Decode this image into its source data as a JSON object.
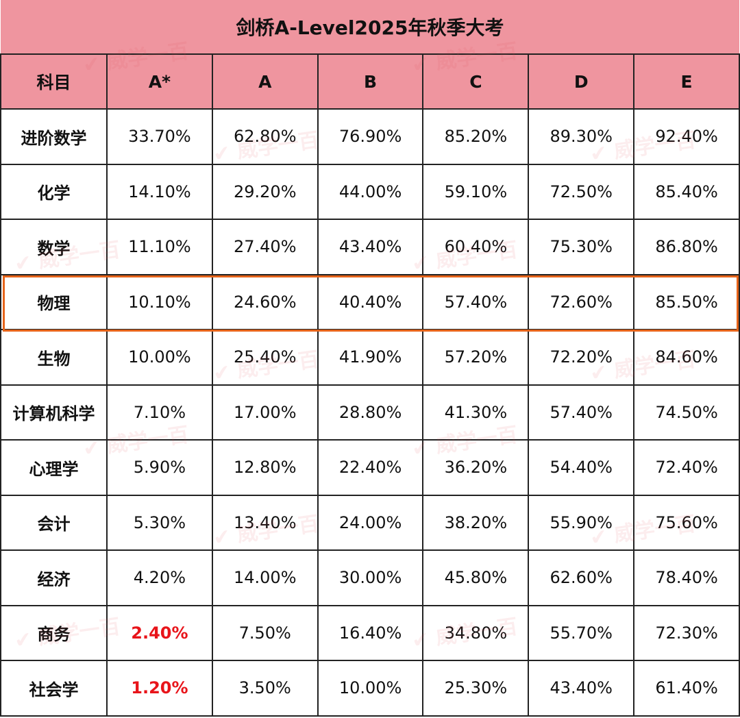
{
  "title": "剑桥A-Level2025年秋季大考",
  "watermark": "威学一百",
  "colors": {
    "header_bg": "#ef959f",
    "highlight_border": "#e6641a",
    "emphasis_text": "#e8141a"
  },
  "headers": [
    "科目",
    "A*",
    "A",
    "B",
    "C",
    "D",
    "E"
  ],
  "highlighted_subject": "物理",
  "rows": [
    {
      "subject": "进阶数学",
      "values": [
        "33.70%",
        "62.80%",
        "76.90%",
        "85.20%",
        "89.30%",
        "92.40%"
      ]
    },
    {
      "subject": "化学",
      "values": [
        "14.10%",
        "29.20%",
        "44.00%",
        "59.10%",
        "72.50%",
        "85.40%"
      ]
    },
    {
      "subject": "数学",
      "values": [
        "11.10%",
        "27.40%",
        "43.40%",
        "60.40%",
        "75.30%",
        "86.80%"
      ]
    },
    {
      "subject": "物理",
      "values": [
        "10.10%",
        "24.60%",
        "40.40%",
        "57.40%",
        "72.60%",
        "85.50%"
      ]
    },
    {
      "subject": "生物",
      "values": [
        "10.00%",
        "25.40%",
        "41.90%",
        "57.20%",
        "72.20%",
        "84.60%"
      ]
    },
    {
      "subject": "计算机科学",
      "values": [
        "7.10%",
        "17.00%",
        "28.80%",
        "41.30%",
        "57.40%",
        "74.50%"
      ]
    },
    {
      "subject": "心理学",
      "values": [
        "5.90%",
        "12.80%",
        "22.40%",
        "36.20%",
        "54.40%",
        "72.40%"
      ]
    },
    {
      "subject": "会计",
      "values": [
        "5.30%",
        "13.40%",
        "24.00%",
        "38.20%",
        "55.90%",
        "75.60%"
      ]
    },
    {
      "subject": "经济",
      "values": [
        "4.20%",
        "14.00%",
        "30.00%",
        "45.80%",
        "62.60%",
        "78.40%"
      ]
    },
    {
      "subject": "商务",
      "values": [
        "2.40%",
        "7.50%",
        "16.40%",
        "34.80%",
        "55.70%",
        "72.30%"
      ],
      "red_cells": [
        0
      ]
    },
    {
      "subject": "社会学",
      "values": [
        "1.20%",
        "3.50%",
        "10.00%",
        "25.30%",
        "43.40%",
        "61.40%"
      ],
      "red_cells": [
        0
      ]
    }
  ]
}
